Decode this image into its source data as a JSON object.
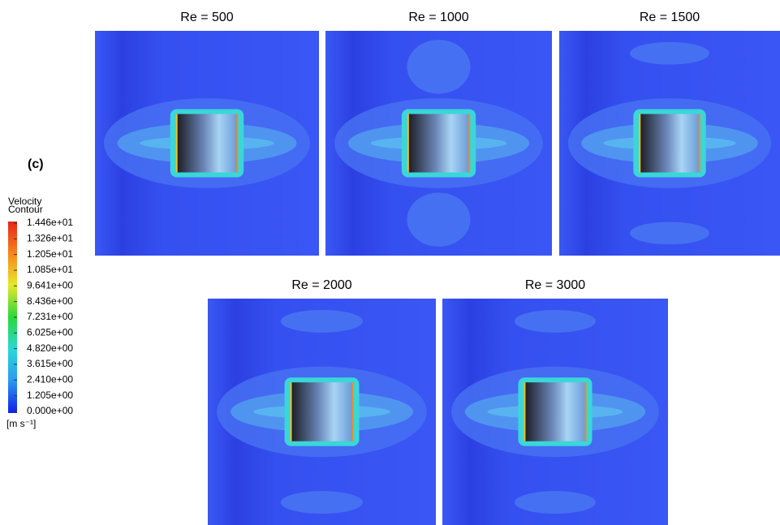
{
  "figure": {
    "label": "(c)",
    "legend": {
      "title_lines": [
        "Velocity",
        "Contour"
      ],
      "labels": [
        "1.446e+01",
        "1.326e+01",
        "1.205e+01",
        "1.085e+01",
        "9.641e+00",
        "8.436e+00",
        "7.231e+00",
        "6.025e+00",
        "4.820e+00",
        "3.615e+00",
        "2.410e+00",
        "1.205e+00",
        "0.000e+00"
      ],
      "unit": "[m s⁻¹]"
    },
    "panels": [
      {
        "title": "Re = 500"
      },
      {
        "title": "Re = 1000"
      },
      {
        "title": "Re = 1500"
      },
      {
        "title": "Re = 2000"
      },
      {
        "title": "Re = 3000"
      }
    ]
  }
}
